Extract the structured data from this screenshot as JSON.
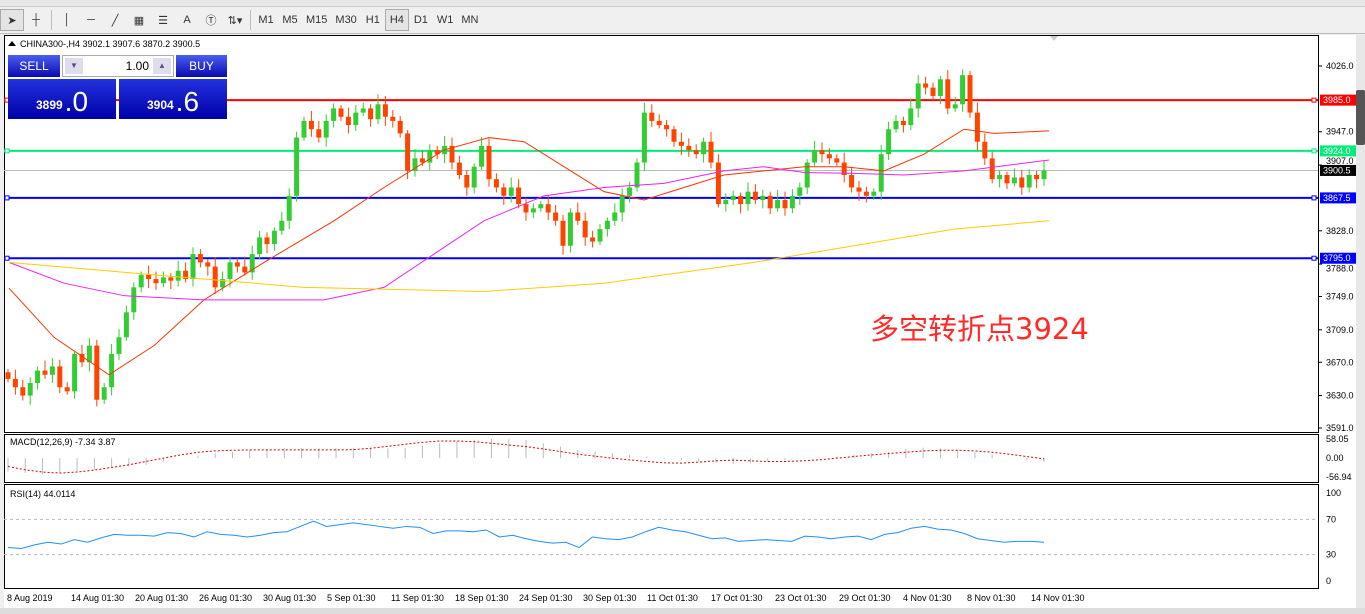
{
  "toolbar": {
    "tools": [
      "cursor-icon",
      "crosshair-icon",
      "vertical-line-icon",
      "horizontal-line-icon",
      "trendline-icon",
      "fibonacci-icon",
      "fibo-fan-icon",
      "text-icon",
      "text-label-icon",
      "arrows-icon"
    ],
    "text_tool": "A",
    "timeframes": [
      "M1",
      "M5",
      "M15",
      "M30",
      "H1",
      "H4",
      "D1",
      "W1",
      "MN"
    ],
    "active_timeframe": "H4"
  },
  "chart": {
    "title": "CHINA300-,H4  3902.1 3907.6 3870.2 3900.5",
    "trade_panel": {
      "sell": "SELL",
      "buy": "BUY",
      "lot": "1.00",
      "bid_small": "3899",
      "bid_big": ".0",
      "ask_small": "3904",
      "ask_big": ".6"
    },
    "annotation": "多空转折点3924",
    "price_ticks": [
      "4026.0",
      "3947.0",
      "3907.0",
      "3828.0",
      "3788.0",
      "3749.0",
      "3709.0",
      "3670.0",
      "3630.0",
      "3591.0"
    ],
    "price_range": [
      3591,
      4026
    ],
    "levels": [
      {
        "label": "3985.0",
        "value": 3985,
        "color": "#ff0000"
      },
      {
        "label": "3924.0",
        "value": 3924,
        "color": "#00ee77"
      },
      {
        "label": "3867.5",
        "value": 3867.5,
        "color": "#0000ff"
      },
      {
        "label": "3795.0",
        "value": 3795,
        "color": "#0000ff"
      }
    ],
    "current": {
      "label": "3900.5",
      "value": 3900.5
    },
    "closes": [
      3650,
      3640,
      3630,
      3645,
      3660,
      3655,
      3665,
      3640,
      3635,
      3680,
      3670,
      3690,
      3625,
      3640,
      3680,
      3700,
      3730,
      3760,
      3775,
      3770,
      3765,
      3772,
      3768,
      3780,
      3770,
      3800,
      3790,
      3785,
      3760,
      3770,
      3790,
      3785,
      3778,
      3800,
      3820,
      3812,
      3828,
      3840,
      3870,
      3940,
      3960,
      3950,
      3940,
      3960,
      3975,
      3965,
      3955,
      3970,
      3975,
      3962,
      3980,
      3965,
      3960,
      3945,
      3900,
      3915,
      3910,
      3925,
      3920,
      3930,
      3910,
      3895,
      3880,
      3905,
      3930,
      3890,
      3880,
      3870,
      3880,
      3860,
      3850,
      3855,
      3860,
      3850,
      3840,
      3810,
      3850,
      3840,
      3820,
      3815,
      3830,
      3840,
      3850,
      3870,
      3880,
      3910,
      3970,
      3960,
      3955,
      3950,
      3935,
      3930,
      3925,
      3920,
      3935,
      3910,
      3860,
      3865,
      3870,
      3860,
      3875,
      3865,
      3870,
      3855,
      3865,
      3855,
      3870,
      3880,
      3910,
      3925,
      3920,
      3915,
      3910,
      3895,
      3880,
      3875,
      3870,
      3875,
      3920,
      3950,
      3960,
      3955,
      3975,
      4005,
      4000,
      3990,
      4010,
      3975,
      3980,
      4015,
      3970,
      3935,
      3915,
      3890,
      3895,
      3885,
      3892,
      3880,
      3895,
      3890,
      3900.5
    ],
    "ma_orange": [
      [
        5,
        3759
      ],
      [
        50,
        3700
      ],
      [
        105,
        3655
      ],
      [
        150,
        3690
      ],
      [
        200,
        3745
      ],
      [
        260,
        3790
      ],
      [
        330,
        3840
      ],
      [
        380,
        3880
      ],
      [
        440,
        3925
      ],
      [
        485,
        3940
      ],
      [
        520,
        3935
      ],
      [
        560,
        3905
      ],
      [
        600,
        3875
      ],
      [
        640,
        3865
      ],
      [
        680,
        3880
      ],
      [
        720,
        3895
      ],
      [
        760,
        3900
      ],
      [
        800,
        3905
      ],
      [
        840,
        3905
      ],
      [
        880,
        3900
      ],
      [
        920,
        3920
      ],
      [
        960,
        3950
      ],
      [
        990,
        3945
      ],
      [
        1045,
        3948
      ]
    ],
    "ma_magenta": [
      [
        5,
        3790
      ],
      [
        60,
        3765
      ],
      [
        120,
        3750
      ],
      [
        200,
        3745
      ],
      [
        320,
        3745
      ],
      [
        380,
        3760
      ],
      [
        430,
        3800
      ],
      [
        480,
        3840
      ],
      [
        540,
        3870
      ],
      [
        600,
        3880
      ],
      [
        660,
        3885
      ],
      [
        720,
        3900
      ],
      [
        760,
        3905
      ],
      [
        800,
        3898
      ],
      [
        850,
        3897
      ],
      [
        900,
        3895
      ],
      [
        960,
        3900
      ],
      [
        1045,
        3913
      ]
    ],
    "ma_yellow": [
      [
        5,
        3790
      ],
      [
        150,
        3775
      ],
      [
        300,
        3760
      ],
      [
        480,
        3755
      ],
      [
        600,
        3765
      ],
      [
        750,
        3790
      ],
      [
        850,
        3810
      ],
      [
        950,
        3830
      ],
      [
        1045,
        3840
      ]
    ]
  },
  "macd": {
    "label": "MACD(12,26,9) -7.34 3.87",
    "ticks": [
      "58.05",
      "0.00",
      "-56.94"
    ],
    "range": [
      -56.94,
      58.05
    ],
    "hist": [
      -40,
      -45,
      -48,
      -45,
      -40,
      -35,
      -30,
      -25,
      -20,
      -10,
      0,
      8,
      15,
      20,
      25,
      28,
      30,
      30,
      30,
      30,
      30,
      30,
      30,
      32,
      38,
      45,
      52,
      56,
      58,
      57,
      55,
      45,
      35,
      25,
      20,
      15,
      10,
      5,
      -2,
      -6,
      -10,
      -14,
      -18,
      -15,
      -10,
      -5,
      0,
      2,
      5,
      10,
      15,
      20,
      28,
      32,
      30,
      25,
      18,
      10,
      0,
      -5,
      -10
    ],
    "signal": [
      -25,
      -35,
      -42,
      -45,
      -42,
      -36,
      -28,
      -20,
      -10,
      0,
      10,
      18,
      22,
      24,
      25,
      25,
      25,
      25,
      25,
      25,
      26,
      30,
      36,
      42,
      48,
      52,
      52,
      50,
      45,
      40,
      35,
      28,
      20,
      12,
      6,
      0,
      -5,
      -10,
      -14,
      -15,
      -12,
      -8,
      -6,
      -8,
      -10,
      -10,
      -8,
      -5,
      0,
      5,
      10,
      14,
      18,
      22,
      24,
      24,
      22,
      18,
      12,
      5,
      -2
    ]
  },
  "rsi": {
    "label": "RSI(14) 44.0114",
    "ticks": [
      "100",
      "70",
      "30",
      "0"
    ],
    "values": [
      38,
      37,
      41,
      44,
      42,
      47,
      44,
      49,
      53,
      52,
      52,
      51,
      55,
      54,
      50,
      56,
      53,
      52,
      50,
      52,
      55,
      56,
      62,
      68,
      62,
      64,
      66,
      64,
      62,
      60,
      62,
      61,
      54,
      57,
      57,
      56,
      58,
      50,
      52,
      48,
      45,
      43,
      44,
      38,
      50,
      48,
      47,
      50,
      56,
      61,
      58,
      56,
      52,
      48,
      49,
      45,
      46,
      47,
      46,
      45,
      51,
      50,
      48,
      50,
      51,
      47,
      53,
      55,
      60,
      62,
      59,
      58,
      54,
      48,
      46,
      44,
      45,
      45,
      44
    ]
  },
  "time_axis": [
    "8 Aug 2019",
    "14 Aug 01:30",
    "20 Aug 01:30",
    "26 Aug 01:30",
    "30 Aug 01:30",
    "5 Sep 01:30",
    "11 Sep 01:30",
    "18 Sep 01:30",
    "24 Sep 01:30",
    "30 Sep 01:30",
    "11 Oct 01:30",
    "17 Oct 01:30",
    "23 Oct 01:30",
    "29 Oct 01:30",
    "4 Nov 01:30",
    "8 Nov 01:30",
    "14 Nov 01:30"
  ],
  "colors": {
    "bull": "#33cc33",
    "bear": "#ff4400",
    "ma_orange": "#ff3300",
    "ma_magenta": "#ee22ee",
    "ma_yellow": "#ffcc00",
    "rsi": "#1e90ff",
    "macd_signal": "#dd0000"
  }
}
